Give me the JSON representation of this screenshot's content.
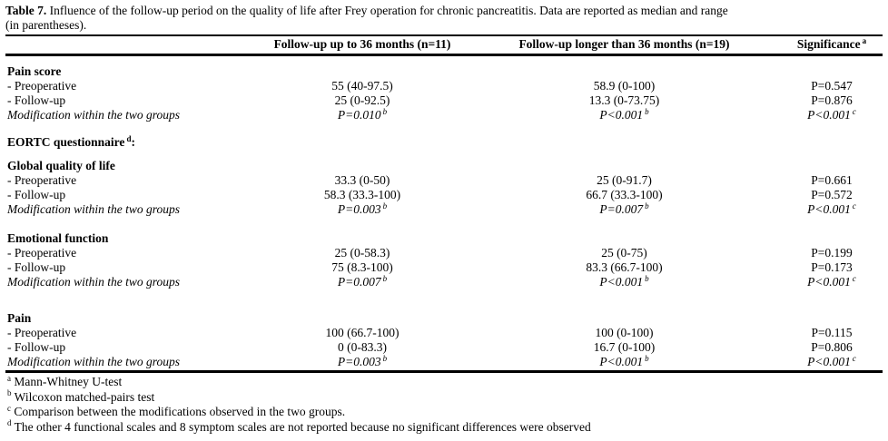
{
  "caption": {
    "label": "Table 7.",
    "line1_rest": " Influence of the follow-up period on the quality of life after Frey operation for chronic pancreatitis. Data are reported as median and range",
    "line2": "(in parentheses)."
  },
  "table": {
    "header": {
      "col2": "Follow-up up to 36 months (n=11)",
      "col3": "Follow-up longer than 36 months (n=19)",
      "col4": "Significance",
      "col4_sup": "a"
    },
    "sections": [
      {
        "heading": "Pain score",
        "rows": [
          {
            "label": "- Preoperative",
            "italic": false,
            "cells": [
              {
                "text": "55 (40-97.5)"
              },
              {
                "text": "58.9 (0-100)"
              },
              {
                "text": "P=0.547"
              }
            ]
          },
          {
            "label": "- Follow-up",
            "italic": false,
            "cells": [
              {
                "text": "25 (0-92.5)"
              },
              {
                "text": "13.3 (0-73.75)"
              },
              {
                "text": "P=0.876"
              }
            ]
          },
          {
            "label": "Modification within the two groups",
            "italic": true,
            "cells": [
              {
                "text": "P=0.010",
                "sup": "b"
              },
              {
                "text": "P<0.001",
                "sup": "b"
              },
              {
                "text": "P<0.001",
                "sup": "c"
              }
            ]
          }
        ]
      },
      {
        "heading": "EORTC questionnaire",
        "heading_sup": "d",
        "heading_suffix": ":",
        "rows": []
      },
      {
        "heading": "Global quality of life",
        "rows": [
          {
            "label": "- Preoperative",
            "italic": false,
            "cells": [
              {
                "text": "33.3 (0-50)"
              },
              {
                "text": "25 (0-91.7)"
              },
              {
                "text": "P=0.661"
              }
            ]
          },
          {
            "label": "- Follow-up",
            "italic": false,
            "cells": [
              {
                "text": "58.3 (33.3-100)"
              },
              {
                "text": "66.7 (33.3-100)"
              },
              {
                "text": "P=0.572"
              }
            ]
          },
          {
            "label": "Modification within the two groups",
            "italic": true,
            "cells": [
              {
                "text": "P=0.003",
                "sup": "b"
              },
              {
                "text": "P=0.007",
                "sup": "b"
              },
              {
                "text": "P<0.001",
                "sup": "c"
              }
            ]
          }
        ]
      },
      {
        "heading": "Emotional function",
        "rows": [
          {
            "label": "- Preoperative",
            "italic": false,
            "cells": [
              {
                "text": "25 (0-58.3)"
              },
              {
                "text": "25 (0-75)"
              },
              {
                "text": "P=0.199"
              }
            ]
          },
          {
            "label": "- Follow-up",
            "italic": false,
            "cells": [
              {
                "text": "75 (8.3-100)"
              },
              {
                "text": "83.3 (66.7-100)"
              },
              {
                "text": "P=0.173"
              }
            ]
          },
          {
            "label": "Modification within the two groups",
            "italic": true,
            "cells": [
              {
                "text": "P=0.007",
                "sup": "b"
              },
              {
                "text": "P<0.001",
                "sup": "b"
              },
              {
                "text": "P<0.001",
                "sup": "c"
              }
            ]
          }
        ]
      },
      {
        "heading": "Pain",
        "rows": [
          {
            "label": "- Preoperative",
            "italic": false,
            "cells": [
              {
                "text": "100 (66.7-100)"
              },
              {
                "text": "100 (0-100)"
              },
              {
                "text": "P=0.115"
              }
            ]
          },
          {
            "label": "- Follow-up",
            "italic": false,
            "cells": [
              {
                "text": "0 (0-83.3)"
              },
              {
                "text": "16.7 (0-100)"
              },
              {
                "text": "P=0.806"
              }
            ]
          },
          {
            "label": "Modification within the two groups",
            "italic": true,
            "cells": [
              {
                "text": "P=0.003",
                "sup": "b"
              },
              {
                "text": "P<0.001",
                "sup": "b"
              },
              {
                "text": "P<0.001",
                "sup": "c"
              }
            ]
          }
        ]
      }
    ]
  },
  "footnotes": [
    {
      "sup": "a",
      "text": "Mann-Whitney U-test"
    },
    {
      "sup": "b",
      "text": "Wilcoxon matched-pairs test"
    },
    {
      "sup": "c",
      "text": "Comparison between the modifications observed in the two groups."
    },
    {
      "sup": "d",
      "text": "The other 4 functional scales and 8 symptom scales are not reported because no significant differences were observed"
    }
  ]
}
